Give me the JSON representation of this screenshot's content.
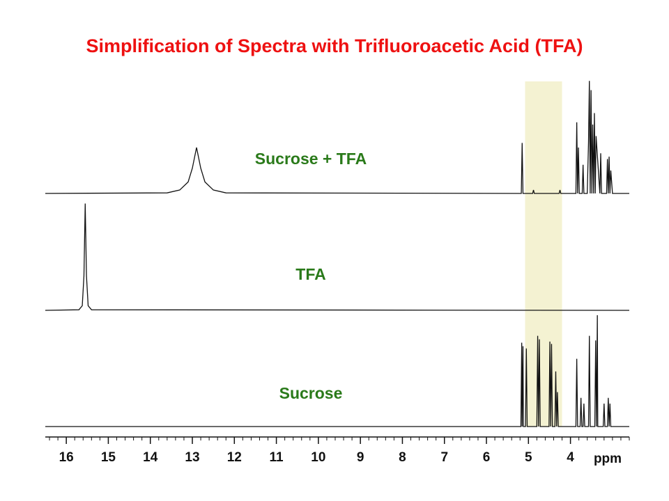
{
  "title": "Simplification of Spectra with Trifluoroacetic Acid (TFA)",
  "title_color": "#ee1111",
  "highlight": {
    "x": [
      5.08,
      4.2
    ],
    "color": "#f4f2d2"
  },
  "chart_data": [
    {
      "type": "line",
      "title": "Sucrose + TFA",
      "label_color": "#2a7a1a",
      "color": "#111111",
      "ylim": [
        0,
        100
      ],
      "x": [
        16.5,
        13.6,
        13.3,
        13.1,
        13.0,
        12.9,
        12.8,
        12.7,
        12.5,
        12.2,
        5.17,
        5.15,
        5.13,
        4.9,
        4.88,
        4.86,
        4.27,
        4.25,
        4.23,
        3.87,
        3.85,
        3.83,
        3.81,
        3.79,
        3.72,
        3.7,
        3.68,
        3.6,
        3.57,
        3.55,
        3.53,
        3.51,
        3.49,
        3.47,
        3.45,
        3.43,
        3.41,
        3.39,
        3.3,
        3.28,
        3.26,
        3.14,
        3.12,
        3.1,
        3.08,
        3.06,
        3.04,
        3.0,
        2.6
      ],
      "values": [
        0,
        0.5,
        3,
        10,
        22,
        40,
        22,
        10,
        3,
        0.5,
        0,
        44,
        0,
        0,
        3,
        0,
        0,
        3,
        0,
        0,
        62,
        0,
        40,
        0,
        0,
        25,
        0,
        0,
        45,
        98,
        0,
        90,
        0,
        60,
        0,
        70,
        0,
        50,
        0,
        35,
        0,
        0,
        30,
        0,
        32,
        0,
        20,
        0,
        0
      ]
    },
    {
      "type": "line",
      "title": "TFA",
      "label_color": "#2a7a1a",
      "color": "#111111",
      "ylim": [
        0,
        100
      ],
      "x": [
        16.5,
        15.7,
        15.62,
        15.58,
        15.55,
        15.52,
        15.48,
        15.4,
        2.6
      ],
      "values": [
        0,
        0.5,
        4,
        30,
        93,
        30,
        4,
        0.5,
        0
      ]
    },
    {
      "type": "line",
      "title": "Sucrose",
      "label_color": "#2a7a1a",
      "color": "#111111",
      "ylim": [
        0,
        100
      ],
      "x": [
        16.5,
        5.18,
        5.16,
        5.15,
        5.13,
        5.12,
        5.07,
        5.05,
        5.03,
        4.8,
        4.78,
        4.76,
        4.74,
        4.72,
        4.51,
        4.49,
        4.47,
        4.45,
        4.43,
        4.37,
        4.35,
        4.33,
        4.31,
        4.29,
        3.87,
        3.85,
        3.83,
        3.77,
        3.75,
        3.73,
        3.7,
        3.68,
        3.66,
        3.57,
        3.55,
        3.53,
        3.42,
        3.4,
        3.38,
        3.36,
        3.35,
        3.33,
        3.22,
        3.2,
        3.18,
        3.12,
        3.1,
        3.08,
        3.06,
        3.04,
        3.0,
        2.6
      ],
      "values": [
        0,
        0,
        73,
        0,
        70,
        0,
        0,
        68,
        0,
        0,
        79,
        0,
        76,
        0,
        0,
        74,
        0,
        72,
        0,
        0,
        48,
        0,
        30,
        0,
        0,
        59,
        0,
        0,
        25,
        0,
        0,
        20,
        0,
        0,
        79,
        0,
        0,
        75,
        0,
        97,
        0,
        0,
        0,
        20,
        0,
        0,
        25,
        0,
        20,
        0,
        0,
        0
      ],
      "xlim": [
        16.5,
        2.6
      ],
      "xticks": [
        16,
        15,
        14,
        13,
        12,
        11,
        10,
        9,
        8,
        7,
        6,
        5,
        4
      ],
      "minor_tick_step": 0.2,
      "xlabel": "ppm"
    }
  ]
}
